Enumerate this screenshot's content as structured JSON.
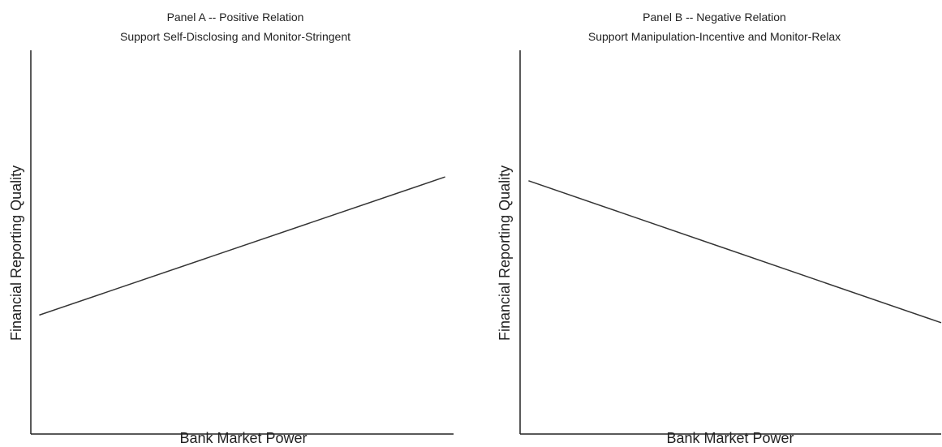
{
  "chart_data": [
    {
      "type": "line",
      "title": "Panel A -- Positive Relation",
      "subtitle": "Support Self-Disclosing and Monitor-Stringent",
      "xlabel": "Bank Market Power",
      "ylabel": "Financial Reporting Quality",
      "xlim": [
        0,
        1
      ],
      "ylim": [
        0,
        1
      ],
      "grid": false,
      "x": [
        0.02,
        0.98
      ],
      "y": [
        0.31,
        0.67
      ],
      "colors": {
        "line": "#333333",
        "axis": "#222222"
      }
    },
    {
      "type": "line",
      "title": "Panel B -- Negative Relation",
      "subtitle": "Support Manipulation-Incentive and Monitor-Relax",
      "xlabel": "Bank Market Power",
      "ylabel": "Financial Reporting Quality",
      "xlim": [
        0,
        1
      ],
      "ylim": [
        0,
        1
      ],
      "grid": false,
      "x": [
        0.02,
        1.0
      ],
      "y": [
        0.66,
        0.29
      ],
      "colors": {
        "line": "#333333",
        "axis": "#222222"
      }
    }
  ]
}
